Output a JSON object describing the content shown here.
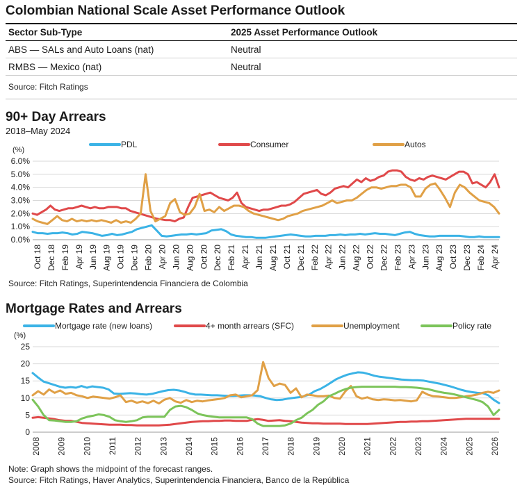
{
  "outlook": {
    "title": "Colombian National Scale Asset Performance Outlook",
    "headers": [
      "Sector Sub-Type",
      "2025 Asset Performance Outlook"
    ],
    "rows": [
      [
        "ABS — SALs and Auto Loans (nat)",
        "Neutral"
      ],
      [
        "RMBS — Mexico (nat)",
        "Neutral"
      ]
    ],
    "source": "Source: Fitch Ratings"
  },
  "arrears_section": {
    "title": "90+ Day Arrears",
    "subtitle": "2018–May 2024",
    "source": "Source: Fitch Ratings, Superintendencia Financiera de Colombia"
  },
  "mortgage_section": {
    "title": "Mortgage Rates and Arrears",
    "note": "Note: Graph shows the midpoint of the forecast ranges.",
    "source": "Source: Fitch Ratings, Haver Analytics, Superintendencia Financiera, Banco de la República"
  },
  "colors": {
    "blue": "#3bb3e6",
    "red": "#e0494a",
    "orange": "#e0a046",
    "green": "#7cc45a",
    "grid": "#d9d9d9"
  },
  "chart_data": [
    {
      "type": "line",
      "title": "90+ Day Arrears",
      "ylabel": "(%)",
      "ylim": [
        0,
        6
      ],
      "yticks": [
        "0.0%",
        "1.0%",
        "2.0%",
        "3.0%",
        "4.0%",
        "5.0%",
        "6.0%"
      ],
      "x_start": "Oct 18",
      "x_ticks": [
        "Oct 18",
        "Dec 18",
        "Feb 19",
        "Apr 19",
        "Jun 19",
        "Aug 19",
        "Oct 19",
        "Dec 19",
        "Feb 20",
        "Apr 20",
        "Jun 20",
        "Aug 20",
        "Oct 20",
        "Dec 20",
        "Feb 21",
        "Apr 21",
        "Jun 21",
        "Aug 21",
        "Oct 21",
        "Dec 21",
        "Feb 22",
        "Apr 22",
        "Jun 22",
        "Aug 22",
        "Oct 22",
        "Dec 22",
        "Feb 23",
        "Apr 23",
        "Jun 23",
        "Aug 23",
        "Oct 23",
        "Dec 23",
        "Feb 24",
        "Apr 24"
      ],
      "series": [
        {
          "name": "PDL",
          "color": "#3bb3e6",
          "values": [
            0.6,
            0.5,
            0.5,
            0.45,
            0.5,
            0.5,
            0.55,
            0.5,
            0.4,
            0.45,
            0.6,
            0.55,
            0.5,
            0.4,
            0.3,
            0.35,
            0.45,
            0.35,
            0.4,
            0.5,
            0.6,
            0.8,
            0.9,
            1.0,
            1.1,
            0.7,
            0.3,
            0.25,
            0.3,
            0.35,
            0.4,
            0.4,
            0.45,
            0.4,
            0.45,
            0.5,
            0.7,
            0.75,
            0.8,
            0.65,
            0.4,
            0.3,
            0.25,
            0.2,
            0.2,
            0.15,
            0.15,
            0.15,
            0.2,
            0.25,
            0.3,
            0.35,
            0.4,
            0.35,
            0.3,
            0.25,
            0.25,
            0.3,
            0.3,
            0.3,
            0.35,
            0.35,
            0.4,
            0.35,
            0.4,
            0.4,
            0.45,
            0.4,
            0.45,
            0.5,
            0.45,
            0.45,
            0.4,
            0.35,
            0.45,
            0.55,
            0.6,
            0.45,
            0.35,
            0.3,
            0.25,
            0.25,
            0.3,
            0.3,
            0.3,
            0.3,
            0.3,
            0.25,
            0.2,
            0.2,
            0.25,
            0.2,
            0.2,
            0.2,
            0.2
          ]
        },
        {
          "name": "Consumer",
          "color": "#e0494a",
          "values": [
            2.0,
            1.9,
            2.1,
            2.3,
            2.6,
            2.3,
            2.2,
            2.3,
            2.4,
            2.4,
            2.5,
            2.6,
            2.5,
            2.4,
            2.5,
            2.4,
            2.4,
            2.5,
            2.5,
            2.5,
            2.4,
            2.4,
            2.2,
            2.1,
            2.0,
            1.9,
            1.8,
            1.7,
            1.6,
            1.55,
            1.5,
            1.5,
            1.4,
            1.6,
            1.7,
            2.5,
            3.2,
            3.3,
            3.4,
            3.5,
            3.6,
            3.4,
            3.2,
            3.1,
            3.0,
            3.2,
            3.6,
            2.8,
            2.5,
            2.4,
            2.3,
            2.2,
            2.3,
            2.3,
            2.4,
            2.5,
            2.6,
            2.6,
            2.7,
            2.9,
            3.2,
            3.5,
            3.6,
            3.7,
            3.8,
            3.5,
            3.4,
            3.6,
            3.9,
            4.0,
            4.1,
            4.0,
            4.3,
            4.6,
            4.4,
            4.7,
            4.5,
            4.6,
            4.8,
            4.9,
            5.2,
            5.3,
            5.3,
            5.2,
            4.8,
            4.6,
            4.5,
            4.7,
            4.6,
            4.8,
            4.9,
            4.8,
            4.7,
            4.6,
            4.8,
            5.0,
            5.2,
            5.2,
            5.0,
            4.3,
            4.4,
            4.2,
            4.0,
            4.4,
            5.0,
            4.0
          ]
        },
        {
          "name": "Autos",
          "color": "#e0a046",
          "values": [
            1.6,
            1.4,
            1.3,
            1.2,
            1.5,
            1.8,
            1.5,
            1.4,
            1.6,
            1.4,
            1.5,
            1.4,
            1.5,
            1.4,
            1.5,
            1.4,
            1.3,
            1.5,
            1.3,
            1.4,
            1.3,
            1.6,
            2.0,
            5.0,
            2.2,
            1.4,
            1.6,
            1.8,
            2.8,
            3.1,
            2.1,
            1.9,
            2.0,
            2.5,
            3.5,
            2.2,
            2.3,
            2.1,
            2.5,
            2.2,
            2.4,
            2.6,
            2.6,
            2.5,
            2.2,
            2.0,
            1.9,
            1.8,
            1.7,
            1.6,
            1.5,
            1.6,
            1.8,
            1.9,
            2.0,
            2.2,
            2.3,
            2.4,
            2.5,
            2.6,
            2.8,
            3.0,
            2.8,
            2.9,
            3.0,
            3.0,
            3.2,
            3.5,
            3.8,
            4.0,
            4.0,
            3.9,
            4.0,
            4.1,
            4.1,
            4.2,
            4.2,
            4.0,
            3.3,
            3.3,
            3.9,
            4.2,
            4.3,
            3.8,
            3.2,
            2.5,
            3.6,
            4.2,
            4.0,
            3.6,
            3.3,
            3.0,
            2.9,
            2.8,
            2.5,
            2.0
          ]
        }
      ]
    },
    {
      "type": "line",
      "title": "Mortgage Rates and Arrears",
      "ylabel": "(%)",
      "ylim": [
        0,
        25
      ],
      "yticks": [
        "0",
        "5",
        "10",
        "15",
        "20",
        "25"
      ],
      "x_ticks": [
        "2008",
        "2009",
        "2010",
        "2011",
        "2012",
        "2013",
        "2014",
        "2015",
        "2016",
        "2017",
        "2018",
        "2019",
        "2020",
        "2021",
        "2022",
        "2023",
        "2024",
        "2025",
        "2026"
      ],
      "series": [
        {
          "name": "Mortgage rate (new loans)",
          "color": "#3bb3e6",
          "values": [
            17.3,
            16.0,
            14.8,
            14.3,
            13.8,
            13.3,
            13.0,
            13.2,
            13.0,
            13.5,
            13.0,
            13.4,
            13.2,
            13.0,
            12.5,
            11.3,
            11.2,
            11.3,
            11.4,
            11.3,
            11.1,
            11.0,
            11.2,
            11.6,
            12.0,
            12.3,
            12.4,
            12.2,
            11.8,
            11.3,
            11.0,
            11.0,
            10.9,
            10.8,
            10.8,
            10.7,
            10.6,
            10.6,
            10.7,
            10.8,
            10.8,
            10.7,
            10.5,
            10.0,
            9.6,
            9.4,
            9.5,
            9.8,
            10.0,
            10.2,
            10.5,
            11.0,
            12.0,
            12.6,
            13.5,
            14.5,
            15.5,
            16.2,
            16.8,
            17.2,
            17.5,
            17.4,
            17.0,
            16.5,
            16.2,
            16.0,
            15.8,
            15.6,
            15.4,
            15.3,
            15.2,
            15.2,
            15.1,
            14.8,
            14.5,
            14.2,
            13.8,
            13.4,
            12.9,
            12.4,
            12.0,
            11.7,
            11.5,
            11.4,
            10.8,
            9.5,
            8.5
          ]
        },
        {
          "name": "4+ month arrears (SFC)",
          "color": "#e0494a",
          "values": [
            4.2,
            4.4,
            4.2,
            4.0,
            3.8,
            3.5,
            3.3,
            3.3,
            3.0,
            2.7,
            2.6,
            2.5,
            2.4,
            2.3,
            2.2,
            2.2,
            2.2,
            2.1,
            2.1,
            2.0,
            2.0,
            2.0,
            2.0,
            2.0,
            2.1,
            2.2,
            2.4,
            2.6,
            2.8,
            3.0,
            3.1,
            3.2,
            3.2,
            3.3,
            3.3,
            3.4,
            3.4,
            3.3,
            3.3,
            3.3,
            3.6,
            3.8,
            3.6,
            3.3,
            3.4,
            3.5,
            3.3,
            3.2,
            3.0,
            2.8,
            2.7,
            2.6,
            2.6,
            2.5,
            2.5,
            2.5,
            2.5,
            2.4,
            2.4,
            2.4,
            2.4,
            2.4,
            2.5,
            2.6,
            2.7,
            2.8,
            2.9,
            3.0,
            3.0,
            3.1,
            3.1,
            3.2,
            3.2,
            3.3,
            3.4,
            3.5,
            3.6,
            3.7,
            3.8,
            3.9,
            3.9,
            3.9,
            3.9,
            3.9,
            3.9,
            3.9
          ]
        },
        {
          "name": "Unemployment",
          "color": "#e0a046",
          "values": [
            10.8,
            12.0,
            11.0,
            12.5,
            11.5,
            12.2,
            11.2,
            11.5,
            10.8,
            10.5,
            10.0,
            10.4,
            10.2,
            10.0,
            9.8,
            10.2,
            10.8,
            8.8,
            9.2,
            8.6,
            9.0,
            8.5,
            9.2,
            8.4,
            9.5,
            10.0,
            9.0,
            8.6,
            9.4,
            8.8,
            9.2,
            9.0,
            9.3,
            9.5,
            9.7,
            10.0,
            10.8,
            11.0,
            10.2,
            10.5,
            10.8,
            12.3,
            20.5,
            15.8,
            13.5,
            14.2,
            13.8,
            11.5,
            12.8,
            10.2,
            11.0,
            10.8,
            10.5,
            10.5,
            10.7,
            10.0,
            9.8,
            12.0,
            13.5,
            10.5,
            9.8,
            10.2,
            9.6,
            9.4,
            9.6,
            9.5,
            9.3,
            9.4,
            9.2,
            9.0,
            9.3,
            11.8,
            11.0,
            10.5,
            10.4,
            10.2,
            10.0,
            10.0,
            10.2,
            10.5,
            10.7,
            11.0,
            11.5,
            11.8,
            11.5,
            12.2
          ]
        },
        {
          "name": "Policy rate",
          "color": "#7cc45a",
          "values": [
            9.5,
            7.5,
            5.0,
            3.5,
            3.4,
            3.2,
            3.0,
            3.0,
            3.2,
            4.0,
            4.5,
            4.8,
            5.2,
            5.0,
            4.5,
            3.5,
            3.2,
            3.0,
            3.2,
            3.5,
            4.3,
            4.5,
            4.5,
            4.5,
            4.5,
            6.5,
            7.5,
            7.7,
            7.3,
            6.5,
            5.5,
            5.0,
            4.7,
            4.5,
            4.3,
            4.3,
            4.3,
            4.3,
            4.3,
            4.3,
            3.8,
            2.5,
            1.8,
            1.8,
            1.8,
            1.8,
            2.0,
            2.5,
            3.5,
            4.2,
            5.5,
            6.5,
            8.0,
            9.0,
            10.5,
            11.2,
            12.0,
            12.6,
            13.0,
            13.2,
            13.3,
            13.3,
            13.3,
            13.3,
            13.3,
            13.3,
            13.3,
            13.2,
            13.2,
            13.1,
            13.0,
            12.8,
            12.6,
            12.2,
            11.8,
            11.5,
            11.3,
            11.0,
            10.6,
            10.2,
            9.8,
            9.4,
            8.8,
            7.5,
            5.0,
            6.5
          ]
        }
      ]
    }
  ]
}
